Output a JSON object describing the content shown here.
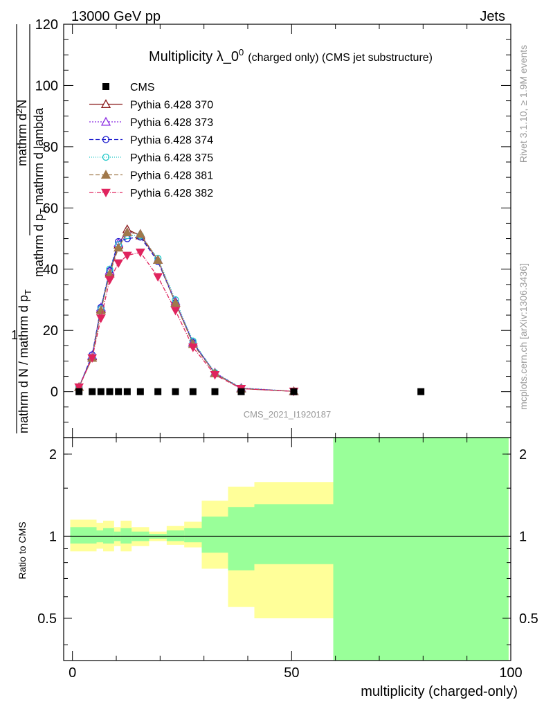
{
  "header": {
    "energy_label": "13000 GeV pp",
    "process_label": "Jets"
  },
  "side_labels": {
    "rivet": "Rivet 3.1.10, ≥ 1.9M events",
    "mcplots": "mcplots.cern.ch [arXiv:1306.3436]"
  },
  "chart_data": [
    {
      "type": "line",
      "title": "Multiplicity λ_0",
      "title_superscript": "0",
      "subtitle": "(charged only) (CMS jet substructure)",
      "watermark": "CMS_2021_I1920187",
      "ylabel_parts": {
        "prefix": "1",
        "denominator": "mathrm d N / mathrm d p",
        "denominator_sub": "T",
        "numerator": "mathrm d",
        "numerator_sup": "2",
        "numerator_tail": "N",
        "lower_denominator": "mathrm d p",
        "lower_denominator_sub": "T",
        "lower_denominator_tail": " mathrm d lambda"
      },
      "ylim": [
        -15,
        120
      ],
      "xlim": [
        -2,
        100
      ],
      "yticks": [
        0,
        20,
        40,
        60,
        80,
        100,
        120
      ],
      "legend": [
        "CMS",
        "Pythia 6.428 370",
        "Pythia 6.428 373",
        "Pythia 6.428 374",
        "Pythia 6.428 375",
        "Pythia 6.428 381",
        "Pythia 6.428 382"
      ],
      "data": {
        "name": "CMS",
        "x": [
          1.5,
          4.5,
          6.5,
          8.5,
          10.5,
          12.5,
          15.5,
          19.5,
          23.5,
          27.5,
          32.5,
          38.5,
          50.5,
          79.5
        ],
        "y": [
          0,
          0,
          0,
          0,
          0,
          0,
          0,
          0,
          0,
          0,
          0,
          0,
          0,
          0
        ]
      },
      "series": [
        {
          "name": "Pythia 6.428 370",
          "color": "#8b1a1a",
          "dash": "",
          "marker": "triangle-open",
          "x": [
            1.5,
            4.5,
            6.5,
            8.5,
            10.5,
            12.5,
            15.5,
            19.5,
            23.5,
            27.5,
            32.5,
            38.5,
            50.5
          ],
          "y": [
            1.5,
            11.5,
            27.0,
            39.0,
            48.0,
            53.0,
            51.0,
            43.0,
            29.0,
            16.0,
            6.0,
            1.0,
            0.1
          ]
        },
        {
          "name": "Pythia 6.428 373",
          "color": "#8a2be2",
          "dash": "2,2",
          "marker": "triangle-open",
          "x": [
            1.5,
            4.5,
            6.5,
            8.5,
            10.5,
            12.5,
            15.5,
            19.5,
            23.5,
            27.5,
            32.5,
            38.5,
            50.5
          ],
          "y": [
            1.5,
            11.8,
            27.5,
            39.5,
            48.5,
            52.0,
            51.5,
            43.0,
            29.5,
            16.0,
            6.2,
            1.2,
            0.1
          ]
        },
        {
          "name": "Pythia 6.428 374",
          "color": "#1e1ecd",
          "dash": "6,3",
          "marker": "circle-open",
          "x": [
            1.5,
            4.5,
            6.5,
            8.5,
            10.5,
            12.5,
            15.5,
            19.5,
            23.5,
            27.5,
            32.5,
            38.5,
            50.5
          ],
          "y": [
            1.5,
            12.0,
            27.5,
            39.5,
            49.0,
            50.0,
            50.5,
            42.5,
            29.0,
            16.0,
            6.0,
            1.1,
            0.1
          ]
        },
        {
          "name": "Pythia 6.428 375",
          "color": "#20c8c8",
          "dash": "1,2",
          "marker": "circle-open",
          "x": [
            1.5,
            4.5,
            6.5,
            8.5,
            10.5,
            12.5,
            15.5,
            19.5,
            23.5,
            27.5,
            32.5,
            38.5,
            50.5
          ],
          "y": [
            1.5,
            11.0,
            27.0,
            40.0,
            48.0,
            51.0,
            51.0,
            43.5,
            30.0,
            16.5,
            6.2,
            1.2,
            0.1
          ]
        },
        {
          "name": "Pythia 6.428 381",
          "color": "#a0784b",
          "dash": "6,3",
          "marker": "triangle-filled",
          "x": [
            1.5,
            4.5,
            6.5,
            8.5,
            10.5,
            12.5,
            15.5,
            19.5,
            23.5,
            27.5,
            32.5,
            38.5,
            50.5
          ],
          "y": [
            1.5,
            11.0,
            26.5,
            38.5,
            47.0,
            52.0,
            51.5,
            43.0,
            29.0,
            15.5,
            6.0,
            1.0,
            0.1
          ]
        },
        {
          "name": "Pythia 6.428 382",
          "color": "#e0245e",
          "dash": "6,2,1,2",
          "marker": "triangle-down-filled",
          "x": [
            1.5,
            4.5,
            6.5,
            8.5,
            10.5,
            12.5,
            15.5,
            19.5,
            23.5,
            27.5,
            32.5,
            38.5,
            50.5
          ],
          "y": [
            1.5,
            11.0,
            24.0,
            36.5,
            42.0,
            44.5,
            45.5,
            37.5,
            26.5,
            14.5,
            5.5,
            1.0,
            0.1
          ]
        }
      ]
    },
    {
      "type": "area",
      "ylabel": "Ratio to CMS",
      "xlabel": "multiplicity (charged-only)",
      "ylim": [
        0.35,
        2.3
      ],
      "xlim": [
        -2,
        100
      ],
      "xticks": [
        0,
        50,
        100
      ],
      "yticks": [
        0.5,
        1,
        2
      ],
      "reference": 1,
      "bins": [
        {
          "x0": -0.5,
          "x1": 5.5,
          "yellow": [
            0.88,
            1.15
          ],
          "green": [
            0.94,
            1.08
          ]
        },
        {
          "x0": 5.5,
          "x1": 7.0,
          "yellow": [
            0.9,
            1.12
          ],
          "green": [
            0.95,
            1.05
          ]
        },
        {
          "x0": 7.0,
          "x1": 9.5,
          "yellow": [
            0.88,
            1.14
          ],
          "green": [
            0.94,
            1.07
          ]
        },
        {
          "x0": 9.5,
          "x1": 11.0,
          "yellow": [
            0.92,
            1.08
          ],
          "green": [
            0.96,
            1.04
          ]
        },
        {
          "x0": 11.0,
          "x1": 13.5,
          "yellow": [
            0.88,
            1.14
          ],
          "green": [
            0.94,
            1.07
          ]
        },
        {
          "x0": 13.5,
          "x1": 17.5,
          "yellow": [
            0.92,
            1.08
          ],
          "green": [
            0.96,
            1.04
          ]
        },
        {
          "x0": 17.5,
          "x1": 21.5,
          "yellow": [
            0.96,
            1.04
          ],
          "green": [
            0.98,
            1.02
          ]
        },
        {
          "x0": 21.5,
          "x1": 25.5,
          "yellow": [
            0.93,
            1.09
          ],
          "green": [
            0.96,
            1.05
          ]
        },
        {
          "x0": 25.5,
          "x1": 29.5,
          "yellow": [
            0.91,
            1.13
          ],
          "green": [
            0.95,
            1.07
          ]
        },
        {
          "x0": 29.5,
          "x1": 35.5,
          "yellow": [
            0.76,
            1.35
          ],
          "green": [
            0.87,
            1.18
          ]
        },
        {
          "x0": 35.5,
          "x1": 41.5,
          "yellow": [
            0.55,
            1.52
          ],
          "green": [
            0.75,
            1.28
          ]
        },
        {
          "x0": 41.5,
          "x1": 59.5,
          "yellow": [
            0.5,
            1.58
          ],
          "green": [
            0.79,
            1.31
          ]
        },
        {
          "x0": 59.5,
          "x1": 99.5,
          "yellow": [
            0.35,
            2.3
          ],
          "green": [
            0.35,
            2.3
          ]
        }
      ],
      "colors": {
        "yellow": "#ffff99",
        "green": "#99ff99"
      }
    }
  ]
}
